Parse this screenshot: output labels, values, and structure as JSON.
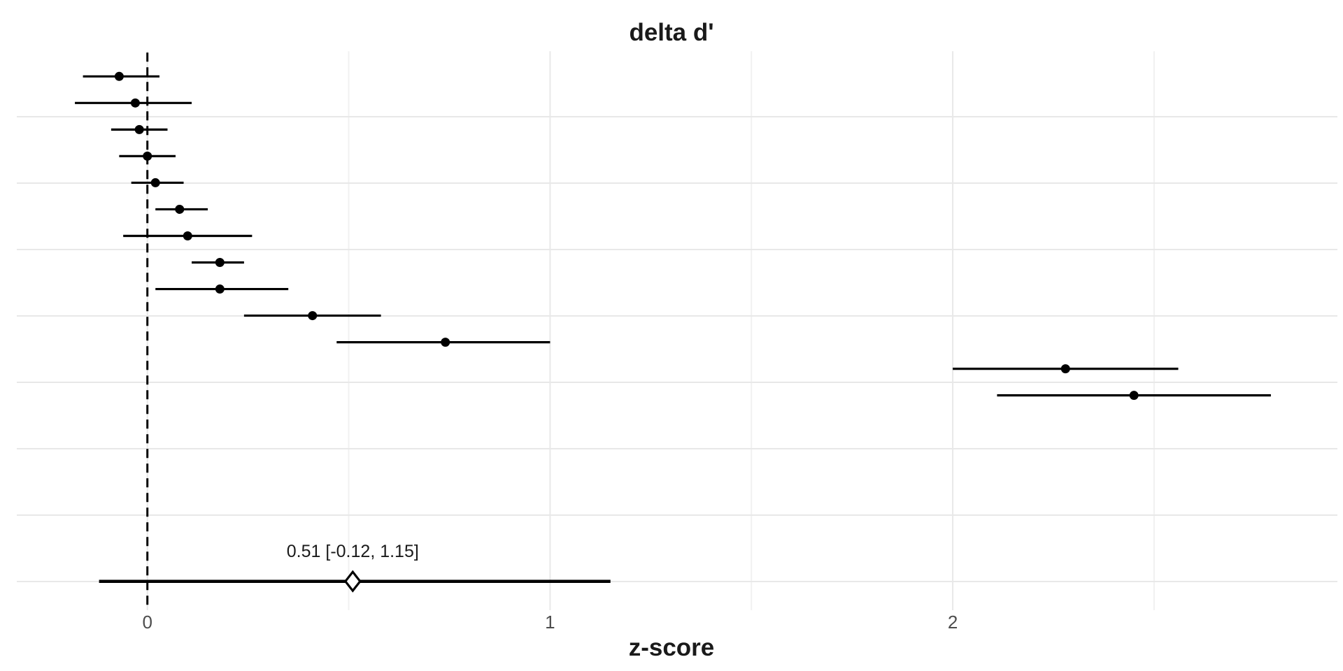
{
  "page": {
    "background": "#ffffff"
  },
  "chart_data": {
    "type": "forest",
    "title": "delta d'",
    "xlabel": "z-score",
    "x_ticks": [
      {
        "value": 0,
        "label": "0"
      },
      {
        "value": 1,
        "label": "1"
      },
      {
        "value": 2,
        "label": "2"
      }
    ],
    "x_minor_grid": [
      0.5,
      1.5,
      2.5
    ],
    "xlim": [
      -0.35,
      2.95
    ],
    "reference_line_x": 0,
    "grid": true,
    "legend": "none",
    "studies": [
      {
        "estimate": -0.07,
        "ci_low": -0.16,
        "ci_high": 0.03
      },
      {
        "estimate": -0.03,
        "ci_low": -0.18,
        "ci_high": 0.11
      },
      {
        "estimate": -0.02,
        "ci_low": -0.09,
        "ci_high": 0.05
      },
      {
        "estimate": 0.0,
        "ci_low": -0.07,
        "ci_high": 0.07
      },
      {
        "estimate": 0.02,
        "ci_low": -0.04,
        "ci_high": 0.09
      },
      {
        "estimate": 0.08,
        "ci_low": 0.02,
        "ci_high": 0.15
      },
      {
        "estimate": 0.1,
        "ci_low": -0.06,
        "ci_high": 0.26
      },
      {
        "estimate": 0.18,
        "ci_low": 0.11,
        "ci_high": 0.24
      },
      {
        "estimate": 0.18,
        "ci_low": 0.02,
        "ci_high": 0.35
      },
      {
        "estimate": 0.41,
        "ci_low": 0.24,
        "ci_high": 0.58
      },
      {
        "estimate": 0.74,
        "ci_low": 0.47,
        "ci_high": 1.0
      },
      {
        "estimate": 2.28,
        "ci_low": 2.0,
        "ci_high": 2.56
      },
      {
        "estimate": 2.45,
        "ci_low": 2.11,
        "ci_high": 2.79
      }
    ],
    "summary": {
      "estimate": 0.51,
      "ci_low": -0.12,
      "ci_high": 1.15,
      "label": "0.51 [-0.12, 1.15]"
    }
  },
  "colors": {
    "background": "#ffffff",
    "data": "#000000",
    "grid_major": "#e8e8e8",
    "grid_minor": "#f1f1f1",
    "tick_text": "#4d4d4d",
    "text": "#1a1a1a"
  }
}
